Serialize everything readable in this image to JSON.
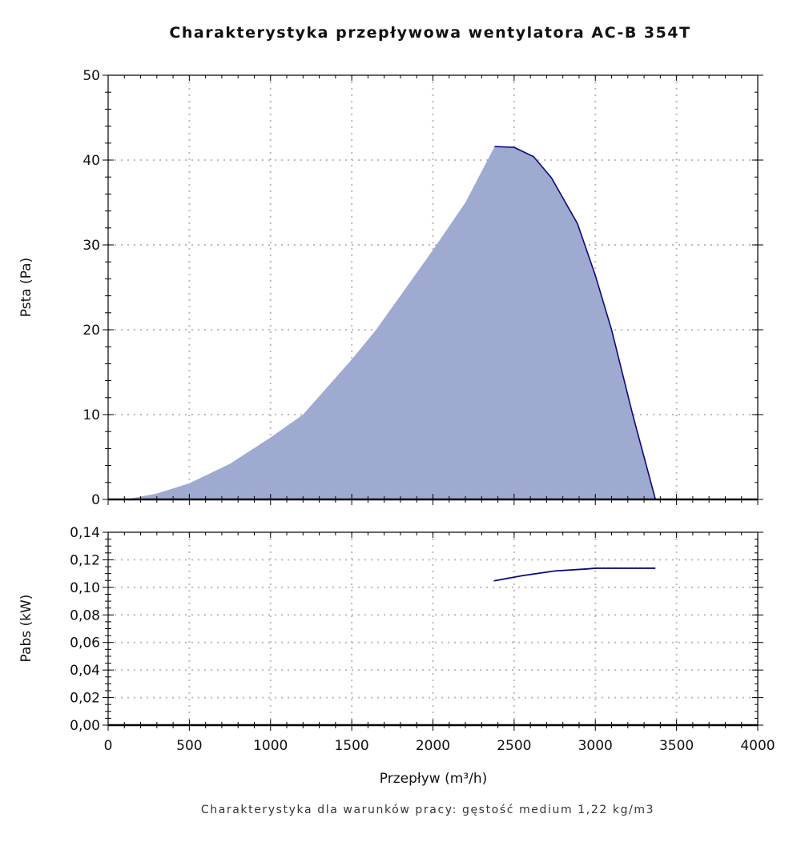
{
  "chart_data": [
    {
      "type": "area",
      "title": "Charakterystyka przepływowa wentylatora AC-B 354T",
      "ylabel": "Psta (Pa)",
      "xlim": [
        0,
        4000
      ],
      "ylim": [
        0,
        50
      ],
      "xticks": [
        0,
        500,
        1000,
        1500,
        2000,
        2500,
        3000,
        3500,
        4000
      ],
      "yticks": [
        "0",
        "10",
        "20",
        "30",
        "40",
        "50"
      ],
      "grid": true,
      "fill_color": "#9eaad0",
      "line_color": "#0a0a80",
      "x": [
        110,
        300,
        500,
        750,
        1000,
        1200,
        1500,
        1650,
        2000,
        2200,
        2380,
        2500,
        2620,
        2730,
        2890,
        3000,
        3100,
        3230,
        3370
      ],
      "y": [
        0,
        0.7,
        1.9,
        4.2,
        7.3,
        10,
        16.5,
        20,
        29.4,
        35,
        41.6,
        41.5,
        40.4,
        37.9,
        32.5,
        26.4,
        20,
        10,
        0
      ]
    },
    {
      "type": "line",
      "ylabel": "Pabs (kW)",
      "xlabel": "Przepływ (m³/h)",
      "xlim": [
        0,
        4000
      ],
      "ylim": [
        0,
        0.14
      ],
      "xticks": [
        "0",
        "500",
        "1000",
        "1500",
        "2000",
        "2500",
        "3000",
        "3500",
        "4000"
      ],
      "yticks": [
        "0,00",
        "0,02",
        "0,04",
        "0,06",
        "0,08",
        "0,10",
        "0,12",
        "0,14"
      ],
      "grid": true,
      "line_color": "#0a0a80",
      "x": [
        2375,
        2550,
        2750,
        2950,
        3000,
        3370
      ],
      "y": [
        0.1047,
        0.1085,
        0.1119,
        0.1134,
        0.1139,
        0.1139
      ]
    }
  ],
  "footer": "Charakterystyka dla warunków pracy: gęstość medium 1,22 kg/m3"
}
